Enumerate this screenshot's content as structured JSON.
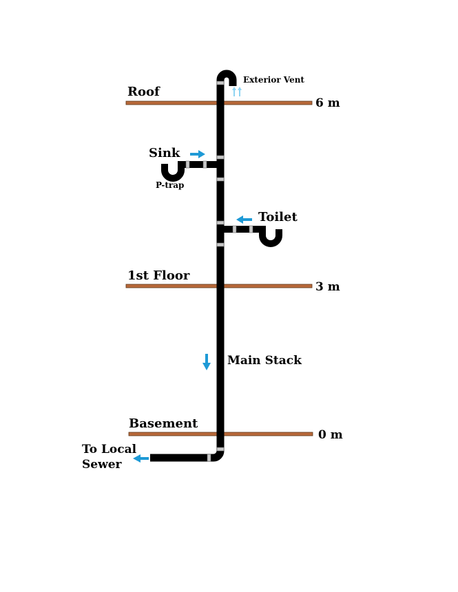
{
  "labels": {
    "exterior_vent": "Exterior Vent",
    "roof": "Roof",
    "sink": "Sink",
    "p_trap": "P-trap",
    "toilet": "Toilet",
    "first_floor": "1st Floor",
    "main_stack": "Main Stack",
    "basement": "Basement",
    "sewer_line1": "To Local",
    "sewer_line2": "Sewer"
  },
  "levels": {
    "roof": "6 m",
    "first_floor": "3 m",
    "basement": "0 m"
  },
  "colors": {
    "floor": "#b8693a",
    "pipe": "#000000",
    "coupling": "#c8c8c8",
    "arrow": "#1e9ad6",
    "vent_arrow": "#8fd4f2"
  }
}
